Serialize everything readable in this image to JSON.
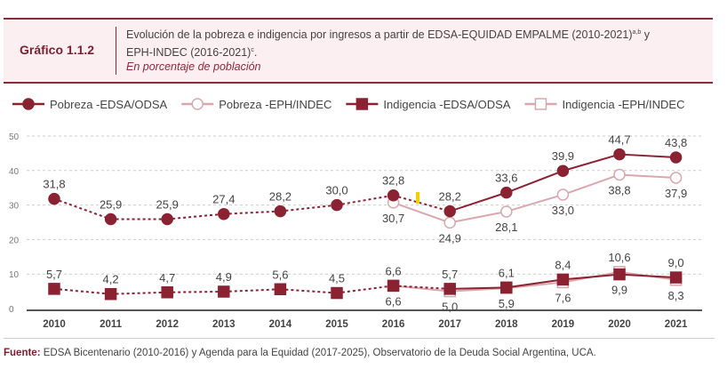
{
  "header": {
    "figure_number": "Gráfico 1.1.2",
    "title_line1": "Evolución de la pobreza e indigencia por ingresos a partir de EDSA-EQUIDAD EMPALME (2010-2021)",
    "title_sup1": "a,b",
    "title_mid": " y",
    "title_line2": "EPH-INDEC (2016-2021)",
    "title_sup2": "c",
    "title_end": ".",
    "subtitle": "En porcentaje de población"
  },
  "footer": {
    "label": "Fuente:",
    "text": " EDSA Bicentenario (2010-2016) y Agenda para la Equidad (2017-2025), Observatorio de la Deuda Social Argentina, UCA."
  },
  "colors": {
    "dark": "#8a2232",
    "light": "#d9a7ad",
    "grid": "#cccccc",
    "marker": "#f5d000"
  },
  "chart_data": {
    "type": "line",
    "categories": [
      "2010",
      "2011",
      "2012",
      "2013",
      "2014",
      "2015",
      "2016",
      "2017",
      "2018",
      "2019",
      "2020",
      "2021"
    ],
    "ylim": [
      0,
      50
    ],
    "yticks": [
      0,
      10,
      20,
      30,
      40,
      50
    ],
    "grid": true,
    "legend": "top",
    "series": [
      {
        "name": "Pobreza -EDSA/ODSA",
        "style": "dark-circle",
        "values": [
          31.8,
          25.9,
          25.9,
          27.4,
          28.2,
          30.0,
          32.8,
          28.2,
          33.6,
          39.9,
          44.7,
          43.8
        ],
        "labels": [
          "31,8",
          "25,9",
          "25,9",
          "27,4",
          "28,2",
          "30,0",
          "32,8",
          "28,2",
          "33,6",
          "39,9",
          "44,7",
          "43,8"
        ]
      },
      {
        "name": "Pobreza -EPH/INDEC",
        "style": "light-circle",
        "values": [
          null,
          null,
          null,
          null,
          null,
          null,
          30.7,
          24.9,
          28.1,
          33.0,
          38.8,
          37.9
        ],
        "labels": [
          null,
          null,
          null,
          null,
          null,
          null,
          "30,7",
          "24,9",
          "28,1",
          "33,0",
          "38,8",
          "37,9"
        ]
      },
      {
        "name": "Indigencia -EDSA/ODSA",
        "style": "dark-square",
        "values": [
          5.7,
          4.2,
          4.7,
          4.9,
          5.6,
          4.5,
          6.6,
          5.7,
          6.1,
          8.4,
          9.9,
          9.0
        ],
        "labels": [
          "5,7",
          "4,2",
          "4,7",
          "4,9",
          "5,6",
          "4,5",
          "6,6",
          "5,7",
          "6,1",
          "8,4",
          "9,9",
          "9,0"
        ]
      },
      {
        "name": "Indigencia -EPH/INDEC",
        "style": "light-square",
        "values": [
          null,
          null,
          null,
          null,
          null,
          null,
          6.6,
          5.0,
          5.9,
          7.6,
          10.6,
          8.3
        ],
        "labels": [
          null,
          null,
          null,
          null,
          null,
          null,
          "6,6",
          "5,0",
          "5,9",
          "7,6",
          "10,6",
          "8,3"
        ]
      }
    ]
  }
}
